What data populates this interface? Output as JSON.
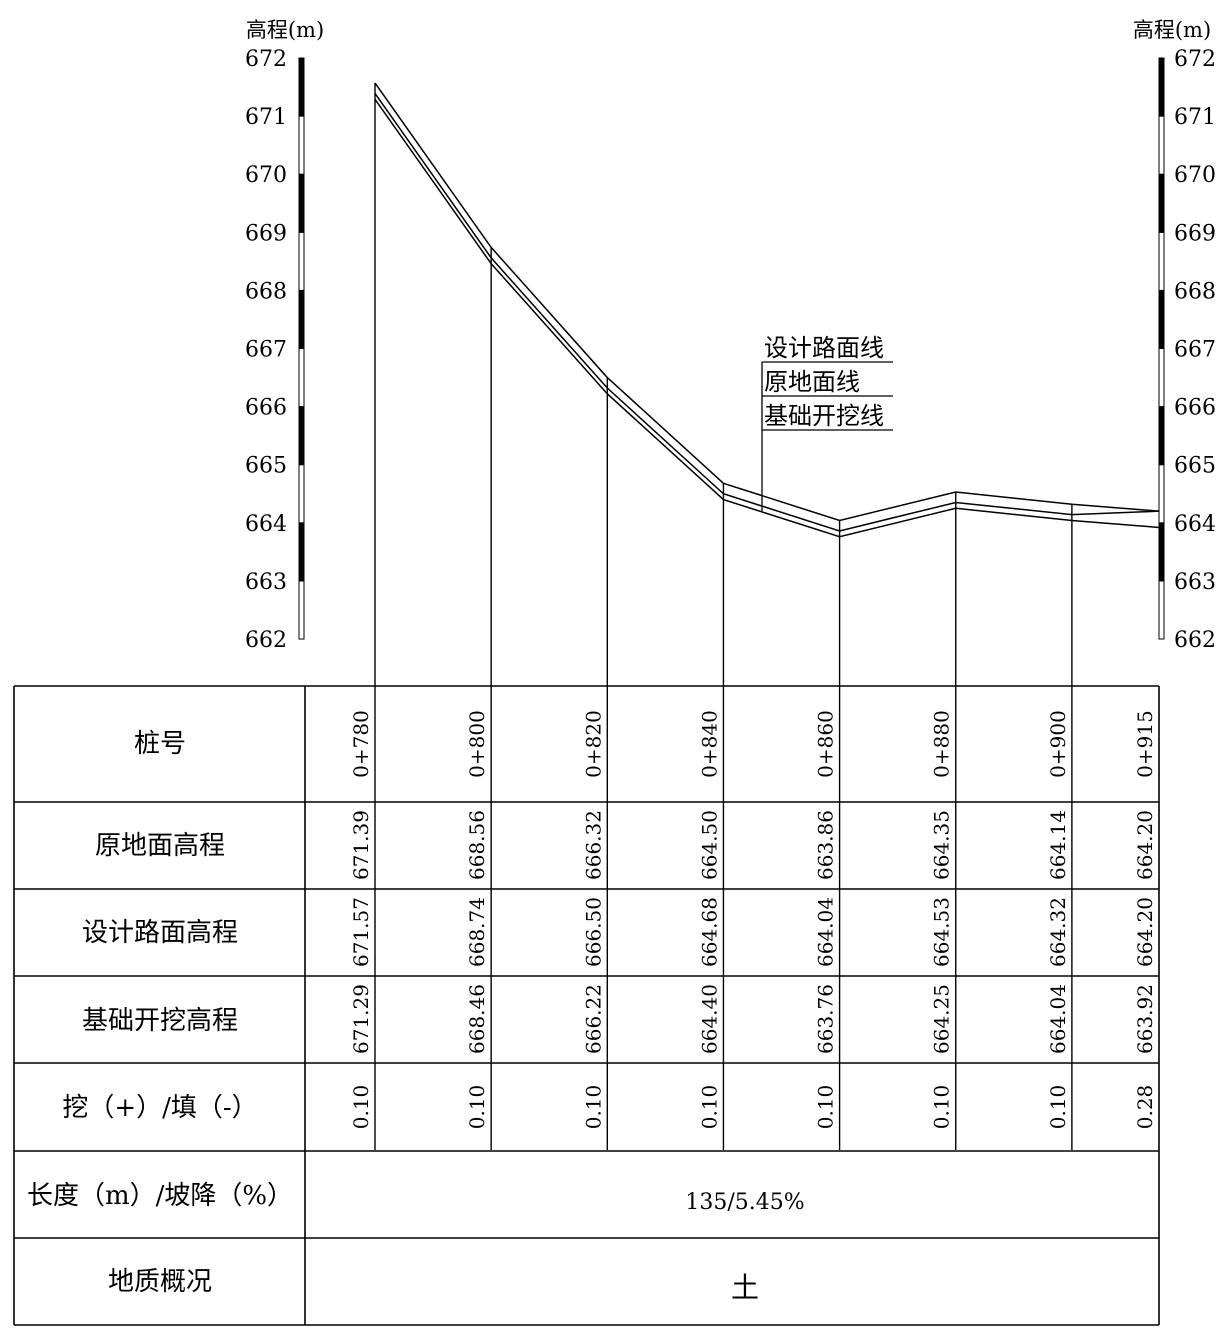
{
  "axis": {
    "left_title": "高程(m)",
    "right_title": "高程(m)",
    "ticks": [
      "672",
      "671",
      "670",
      "669",
      "668",
      "667",
      "666",
      "665",
      "664",
      "663",
      "662"
    ]
  },
  "legend": {
    "design_label": "设计路面线",
    "ground_label": "原地面线",
    "excavation_label": "基础开挖线"
  },
  "table": {
    "row_labels": {
      "stations": "桩号",
      "ground": "原地面高程",
      "design": "设计路面高程",
      "excavation": "基础开挖高程",
      "cut_fill": "挖（+）/填（-）",
      "length_slope": "长度（m）/坡降（%）",
      "geology": "地质概况"
    },
    "length_slope": "135/5.45%",
    "geology": "土"
  },
  "chart_data": {
    "type": "line",
    "x_label": "桩号",
    "y_label": "高程(m)",
    "ylim": [
      662,
      672
    ],
    "stations": [
      "0+780",
      "0+800",
      "0+820",
      "0+840",
      "0+860",
      "0+880",
      "0+900",
      "0+915"
    ],
    "chainage": [
      780,
      800,
      820,
      840,
      860,
      880,
      900,
      915
    ],
    "series": [
      {
        "name": "原地面线",
        "values": [
          "671.39",
          "668.56",
          "666.32",
          "664.50",
          "663.86",
          "664.35",
          "664.14",
          "664.20"
        ]
      },
      {
        "name": "设计路面线",
        "values": [
          "671.57",
          "668.74",
          "666.50",
          "664.68",
          "664.04",
          "664.53",
          "664.32",
          "664.20"
        ]
      },
      {
        "name": "基础开挖线",
        "values": [
          "671.29",
          "668.46",
          "666.22",
          "664.40",
          "663.76",
          "664.25",
          "664.04",
          "663.92"
        ]
      }
    ],
    "cut_fill": [
      "0.10",
      "0.10",
      "0.10",
      "0.10",
      "0.10",
      "0.10",
      "0.10",
      "0.28"
    ]
  }
}
